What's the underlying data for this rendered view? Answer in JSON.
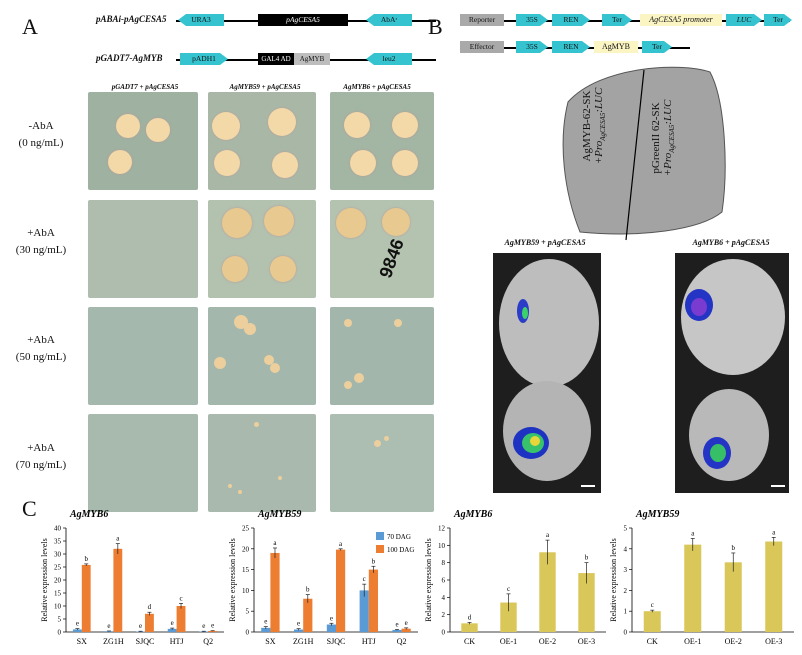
{
  "panel_a": {
    "letter": "A",
    "constructs": [
      {
        "label": "pABAi-pAgCESA5",
        "parts": [
          "URA3",
          "pAgCESA5",
          "AbAʳ"
        ]
      },
      {
        "label": "pGADT7-AgMYB",
        "parts": [
          "pADH1",
          "GAL4 AD",
          "AgMYB",
          "leu2"
        ]
      }
    ],
    "columns": [
      "pGADT7 + pAgCESA5",
      "AgMYB59 + pAgCESA5",
      "AgMYB6 + pAgCESA5"
    ],
    "rows": [
      {
        "line1": "-AbA",
        "line2": "(0 ng/mL)"
      },
      {
        "line1": "+AbA",
        "line2": "(30 ng/mL)"
      },
      {
        "line1": "+AbA",
        "line2": "(50 ng/mL)"
      },
      {
        "line1": "+AbA",
        "line2": "(70 ng/mL)"
      }
    ],
    "plate_marking": "9846"
  },
  "panel_b": {
    "letter": "B",
    "reporter": {
      "label": "Reporter",
      "parts": [
        "35S",
        "REN",
        "Ter",
        "AgCESA5 promoter",
        "LUC",
        "Ter"
      ]
    },
    "effector": {
      "label": "Effector",
      "parts": [
        "35S",
        "REN",
        "AgMYB",
        "Ter"
      ]
    },
    "leaf_left_text": "AgMYB-62-SK",
    "leaf_left_text2": "+Pro",
    "leaf_left_sub": "AgCESA5",
    "leaf_left_text3": ":LUC",
    "leaf_right_text": "pGreenII 62-SK",
    "leaf_right_text2": "+Pro",
    "leaf_right_sub": "AgCESA5",
    "leaf_right_text3": ":LUC",
    "image_titles": [
      "AgMYB59 + pAgCESA5",
      "AgMYB6 + pAgCESA5"
    ]
  },
  "panel_c": {
    "letter": "C",
    "legend": [
      "70 DAG",
      "100 DAG"
    ],
    "colors": {
      "dag70": "#5b9bd5",
      "dag100": "#ed7d31",
      "oe": "#d9c75a"
    }
  },
  "chart_data": [
    {
      "type": "bar",
      "title": "AgMYB6",
      "ylabel": "Relative expression levels",
      "ylim": [
        0,
        40
      ],
      "yticks": [
        0,
        5,
        10,
        15,
        20,
        25,
        30,
        35,
        40
      ],
      "categories": [
        "SX",
        "ZG1H",
        "SJQC",
        "HTJ",
        "Q2"
      ],
      "series": [
        {
          "name": "70 DAG",
          "values": [
            1.0,
            0.3,
            0.2,
            1.2,
            0.2
          ],
          "errors": [
            0.3,
            0.1,
            0.1,
            0.3,
            0.1
          ],
          "letters": [
            "e",
            "e",
            "e",
            "e",
            "e"
          ]
        },
        {
          "name": "100 DAG",
          "values": [
            25.8,
            32.0,
            7.0,
            10.0,
            0.4
          ],
          "errors": [
            0.4,
            2.0,
            0.6,
            1.0,
            0.1
          ],
          "letters": [
            "b",
            "a",
            "d",
            "c",
            "e"
          ]
        }
      ]
    },
    {
      "type": "bar",
      "title": "AgMYB59",
      "ylabel": "Relative expression levels",
      "ylim": [
        0,
        25
      ],
      "yticks": [
        0,
        5,
        10,
        15,
        20,
        25
      ],
      "categories": [
        "SX",
        "ZG1H",
        "SJQC",
        "HTJ",
        "Q2"
      ],
      "series": [
        {
          "name": "70 DAG",
          "values": [
            1.0,
            0.6,
            1.8,
            10.0,
            0.5
          ],
          "errors": [
            0.3,
            0.2,
            0.3,
            1.5,
            0.1
          ],
          "letters": [
            "e",
            "e",
            "e",
            "c",
            "e"
          ]
        },
        {
          "name": "100 DAG",
          "values": [
            19.0,
            8.0,
            19.8,
            15.0,
            0.8
          ],
          "errors": [
            1.2,
            1.0,
            0.2,
            0.8,
            0.2
          ],
          "letters": [
            "a",
            "b",
            "a",
            "b",
            "e"
          ]
        }
      ]
    },
    {
      "type": "bar",
      "title": "AgMYB6",
      "ylabel": "Relative expression levels",
      "ylim": [
        0,
        12
      ],
      "yticks": [
        0,
        2,
        4,
        6,
        8,
        10,
        12
      ],
      "categories": [
        "CK",
        "OE-1",
        "OE-2",
        "OE-3"
      ],
      "series": [
        {
          "values": [
            1.0,
            3.4,
            9.2,
            6.8
          ],
          "errors": [
            0.1,
            1.0,
            1.4,
            1.2
          ],
          "letters": [
            "d",
            "c",
            "a",
            "b"
          ]
        }
      ]
    },
    {
      "type": "bar",
      "title": "AgMYB59",
      "ylabel": "Relative expression levels",
      "ylim": [
        0,
        5
      ],
      "yticks": [
        0,
        1,
        2,
        3,
        4,
        5
      ],
      "categories": [
        "CK",
        "OE-1",
        "OE-2",
        "OE-3"
      ],
      "series": [
        {
          "values": [
            1.0,
            4.2,
            3.35,
            4.35
          ],
          "errors": [
            0.05,
            0.3,
            0.45,
            0.2
          ],
          "letters": [
            "c",
            "a",
            "b",
            "a"
          ]
        }
      ]
    }
  ]
}
